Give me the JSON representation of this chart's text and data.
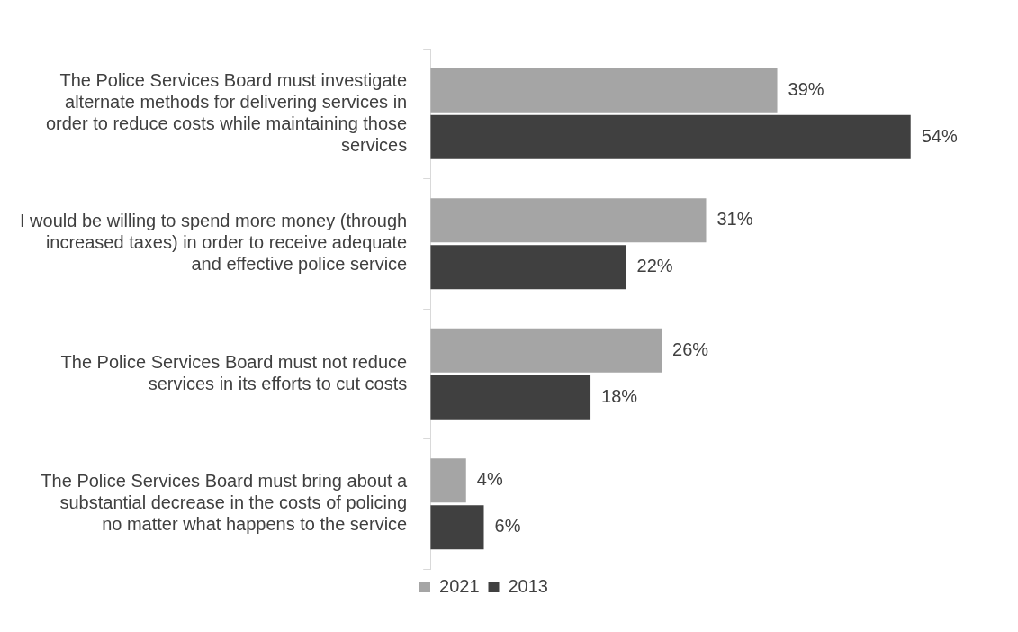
{
  "chart_data": {
    "type": "bar",
    "orientation": "horizontal",
    "categories": [
      "The Police Services Board must investigate alternate methods for delivering services in order to reduce costs while maintaining those services",
      "I would be willing to spend more money (through increased taxes) in order to receive adequate and effective police service",
      "The Police Services Board must not reduce services in its efforts to cut costs",
      "The Police Services Board must bring about a substantial decrease in the costs of policing no matter what happens to the service"
    ],
    "series": [
      {
        "name": "2021",
        "color": "#a5a5a5",
        "values": [
          39,
          31,
          26,
          4
        ],
        "value_labels": [
          "39%",
          "31%",
          "26%",
          "4%"
        ]
      },
      {
        "name": "2013",
        "color": "#404040",
        "values": [
          54,
          22,
          18,
          6
        ],
        "value_labels": [
          "54%",
          "22%",
          "18%",
          "6%"
        ]
      }
    ],
    "legend": "bottom"
  }
}
